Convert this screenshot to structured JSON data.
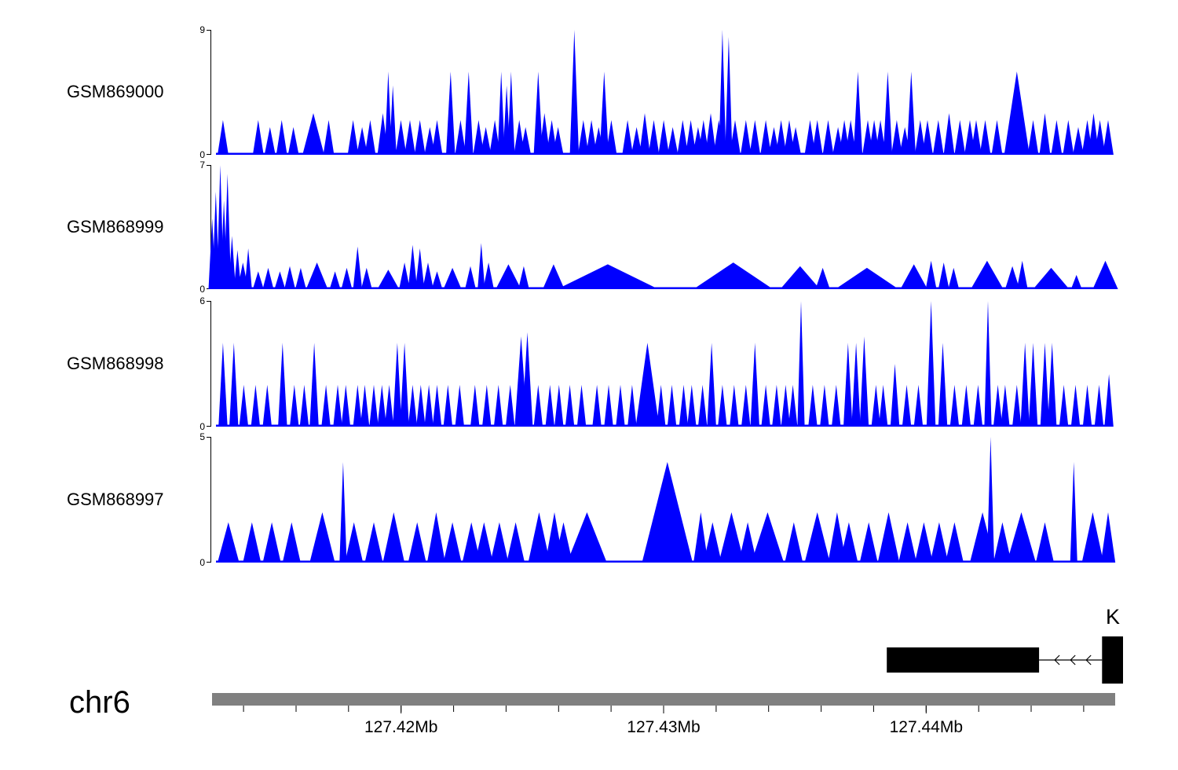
{
  "chart_data": {
    "type": "area",
    "chart_kind": "genome-coverage-tracks",
    "title": "",
    "chromosome": "chr6",
    "x_range_mb": [
      127.4128,
      127.4472
    ],
    "x_ticks": [
      {
        "value": 127.42,
        "label": "127.42Mb"
      },
      {
        "value": 127.43,
        "label": "127.43Mb"
      },
      {
        "value": 127.44,
        "label": "127.44Mb"
      }
    ],
    "x_minor_ticks": [
      127.414,
      127.416,
      127.418,
      127.42,
      127.422,
      127.424,
      127.426,
      127.428,
      127.43,
      127.432,
      127.434,
      127.436,
      127.438,
      127.44,
      127.442,
      127.444,
      127.446
    ],
    "grid": false,
    "legend": false,
    "peak_format": "[x_fraction_of_region, height, half_width_fraction_optional]",
    "colors": {
      "signal": "#0000ff",
      "ideogram": "#808080",
      "annotation": "#000000"
    },
    "series": [
      {
        "name": "GSM869000",
        "ylim": [
          0,
          9
        ],
        "default_halfwidth": 0.006,
        "peaks": [
          [
            0.013,
            2.5
          ],
          [
            0.052,
            2.5
          ],
          [
            0.065,
            2.0
          ],
          [
            0.078,
            2.5
          ],
          [
            0.091,
            2.0
          ],
          [
            0.113,
            3.0,
            0.012
          ],
          [
            0.13,
            2.5
          ],
          [
            0.157,
            2.5
          ],
          [
            0.167,
            2.0
          ],
          [
            0.176,
            2.5
          ],
          [
            0.19,
            3.0
          ],
          [
            0.196,
            6.0,
            0.004
          ],
          [
            0.201,
            5.0,
            0.004
          ],
          [
            0.21,
            2.5
          ],
          [
            0.22,
            2.5
          ],
          [
            0.231,
            2.5
          ],
          [
            0.242,
            2.0
          ],
          [
            0.25,
            2.5
          ],
          [
            0.265,
            6.0,
            0.005
          ],
          [
            0.276,
            2.5
          ],
          [
            0.285,
            6.0,
            0.005
          ],
          [
            0.296,
            2.5
          ],
          [
            0.304,
            2.0
          ],
          [
            0.314,
            2.5
          ],
          [
            0.321,
            6.0,
            0.004
          ],
          [
            0.327,
            5.0,
            0.004
          ],
          [
            0.332,
            6.0,
            0.004
          ],
          [
            0.341,
            2.5
          ],
          [
            0.348,
            2.0
          ],
          [
            0.362,
            6.0,
            0.005
          ],
          [
            0.369,
            3.0
          ],
          [
            0.377,
            2.5
          ],
          [
            0.384,
            2.0
          ],
          [
            0.402,
            9.0,
            0.005
          ],
          [
            0.412,
            2.5
          ],
          [
            0.421,
            2.5
          ],
          [
            0.429,
            2.0
          ],
          [
            0.435,
            6.0,
            0.005
          ],
          [
            0.443,
            2.5
          ],
          [
            0.461,
            2.5
          ],
          [
            0.471,
            2.0
          ],
          [
            0.48,
            3.0
          ],
          [
            0.49,
            2.5
          ],
          [
            0.501,
            2.5
          ],
          [
            0.511,
            2.0
          ],
          [
            0.522,
            2.5
          ],
          [
            0.531,
            2.5
          ],
          [
            0.539,
            2.0
          ],
          [
            0.545,
            2.5
          ],
          [
            0.553,
            3.0
          ],
          [
            0.562,
            2.5
          ],
          [
            0.566,
            9.0,
            0.004
          ],
          [
            0.573,
            8.5,
            0.004
          ],
          [
            0.58,
            2.5
          ],
          [
            0.592,
            2.5
          ],
          [
            0.602,
            2.5
          ],
          [
            0.614,
            2.5
          ],
          [
            0.623,
            2.0
          ],
          [
            0.631,
            2.5
          ],
          [
            0.64,
            2.5
          ],
          [
            0.647,
            2.0
          ],
          [
            0.663,
            2.5
          ],
          [
            0.671,
            2.5
          ],
          [
            0.683,
            2.5
          ],
          [
            0.694,
            2.0
          ],
          [
            0.701,
            2.5
          ],
          [
            0.708,
            2.5
          ],
          [
            0.716,
            6.0,
            0.005
          ],
          [
            0.727,
            2.5
          ],
          [
            0.734,
            2.5
          ],
          [
            0.741,
            2.5
          ],
          [
            0.749,
            6.0,
            0.005
          ],
          [
            0.759,
            2.5
          ],
          [
            0.768,
            2.0
          ],
          [
            0.775,
            6.0,
            0.005
          ],
          [
            0.785,
            2.5
          ],
          [
            0.793,
            2.5
          ],
          [
            0.805,
            2.5
          ],
          [
            0.817,
            3.0
          ],
          [
            0.829,
            2.5
          ],
          [
            0.84,
            2.5
          ],
          [
            0.847,
            2.5
          ],
          [
            0.857,
            2.5
          ],
          [
            0.87,
            2.5
          ],
          [
            0.892,
            6.0,
            0.014
          ],
          [
            0.91,
            2.5
          ],
          [
            0.923,
            3.0
          ],
          [
            0.936,
            2.5
          ],
          [
            0.949,
            2.5
          ],
          [
            0.96,
            2.0
          ],
          [
            0.97,
            2.5
          ],
          [
            0.977,
            3.0
          ],
          [
            0.984,
            2.5
          ],
          [
            0.993,
            2.5
          ]
        ]
      },
      {
        "name": "GSM868999",
        "ylim": [
          0,
          7
        ],
        "default_halfwidth": 0.006,
        "peaks": [
          [
            0.001,
            4.0,
            0.004
          ],
          [
            0.005,
            5.5,
            0.004
          ],
          [
            0.01,
            7.0,
            0.004
          ],
          [
            0.014,
            5.0,
            0.004
          ],
          [
            0.018,
            6.5,
            0.004
          ],
          [
            0.023,
            3.0,
            0.004
          ],
          [
            0.029,
            2.2,
            0.004
          ],
          [
            0.035,
            1.5
          ],
          [
            0.041,
            2.3,
            0.004
          ],
          [
            0.052,
            1.0
          ],
          [
            0.063,
            1.2
          ],
          [
            0.076,
            1.0
          ],
          [
            0.087,
            1.3
          ],
          [
            0.099,
            1.2
          ],
          [
            0.117,
            1.5,
            0.012
          ],
          [
            0.137,
            1.0
          ],
          [
            0.15,
            1.2
          ],
          [
            0.162,
            2.4,
            0.005
          ],
          [
            0.172,
            1.2
          ],
          [
            0.196,
            1.1,
            0.012
          ],
          [
            0.214,
            1.5
          ],
          [
            0.223,
            2.5,
            0.005
          ],
          [
            0.231,
            2.3,
            0.005
          ],
          [
            0.24,
            1.5
          ],
          [
            0.25,
            1.0
          ],
          [
            0.267,
            1.2,
            0.01
          ],
          [
            0.287,
            1.3
          ],
          [
            0.299,
            2.6,
            0.004
          ],
          [
            0.307,
            1.5
          ],
          [
            0.329,
            1.4,
            0.014
          ],
          [
            0.346,
            1.3
          ],
          [
            0.379,
            1.4,
            0.012
          ],
          [
            0.439,
            1.4,
            0.056
          ],
          [
            0.578,
            1.5,
            0.044
          ],
          [
            0.652,
            1.3,
            0.022
          ],
          [
            0.677,
            1.2,
            0.008
          ],
          [
            0.726,
            1.2,
            0.035
          ],
          [
            0.778,
            1.4,
            0.015
          ],
          [
            0.797,
            1.6
          ],
          [
            0.811,
            1.5
          ],
          [
            0.822,
            1.2
          ],
          [
            0.859,
            1.6,
            0.018
          ],
          [
            0.887,
            1.3,
            0.008
          ],
          [
            0.898,
            1.6
          ],
          [
            0.93,
            1.2,
            0.02
          ],
          [
            0.958,
            0.8
          ],
          [
            0.99,
            1.6,
            0.014
          ]
        ]
      },
      {
        "name": "GSM868998",
        "ylim": [
          0,
          6
        ],
        "default_halfwidth": 0.005,
        "peaks": [
          [
            0.013,
            4.0
          ],
          [
            0.025,
            4.0
          ],
          [
            0.036,
            2.0
          ],
          [
            0.049,
            2.0
          ],
          [
            0.062,
            2.0
          ],
          [
            0.079,
            4.0
          ],
          [
            0.092,
            2.0
          ],
          [
            0.103,
            2.0
          ],
          [
            0.114,
            4.0
          ],
          [
            0.127,
            2.0
          ],
          [
            0.14,
            2.0
          ],
          [
            0.149,
            2.0
          ],
          [
            0.162,
            2.0
          ],
          [
            0.17,
            2.0
          ],
          [
            0.18,
            2.0
          ],
          [
            0.189,
            2.0
          ],
          [
            0.197,
            2.0
          ],
          [
            0.206,
            4.0
          ],
          [
            0.214,
            4.0
          ],
          [
            0.223,
            2.0
          ],
          [
            0.232,
            2.0
          ],
          [
            0.241,
            2.0
          ],
          [
            0.25,
            2.0
          ],
          [
            0.262,
            2.0
          ],
          [
            0.275,
            2.0
          ],
          [
            0.292,
            2.0
          ],
          [
            0.305,
            2.0
          ],
          [
            0.318,
            2.0
          ],
          [
            0.331,
            2.0
          ],
          [
            0.343,
            4.3,
            0.007
          ],
          [
            0.35,
            4.5,
            0.006
          ],
          [
            0.362,
            2.0
          ],
          [
            0.375,
            2.0
          ],
          [
            0.385,
            2.0
          ],
          [
            0.397,
            2.0
          ],
          [
            0.41,
            2.0
          ],
          [
            0.427,
            2.0
          ],
          [
            0.44,
            2.0
          ],
          [
            0.453,
            2.0
          ],
          [
            0.466,
            2.0
          ],
          [
            0.483,
            4.0,
            0.013
          ],
          [
            0.498,
            2.0
          ],
          [
            0.51,
            2.0
          ],
          [
            0.523,
            2.0
          ],
          [
            0.532,
            2.0
          ],
          [
            0.544,
            2.0
          ],
          [
            0.554,
            4.0
          ],
          [
            0.566,
            2.0
          ],
          [
            0.579,
            2.0
          ],
          [
            0.592,
            2.0
          ],
          [
            0.602,
            4.0
          ],
          [
            0.614,
            2.0
          ],
          [
            0.626,
            2.0
          ],
          [
            0.636,
            2.0
          ],
          [
            0.644,
            2.0
          ],
          [
            0.653,
            6.0,
            0.004
          ],
          [
            0.666,
            2.0
          ],
          [
            0.679,
            2.0
          ],
          [
            0.692,
            2.0
          ],
          [
            0.705,
            4.0
          ],
          [
            0.714,
            4.0
          ],
          [
            0.723,
            4.3
          ],
          [
            0.736,
            2.0
          ],
          [
            0.744,
            2.0
          ],
          [
            0.757,
            3.0
          ],
          [
            0.77,
            2.0
          ],
          [
            0.783,
            2.0
          ],
          [
            0.797,
            6.0,
            0.005
          ],
          [
            0.81,
            4.0
          ],
          [
            0.823,
            2.0
          ],
          [
            0.836,
            2.0
          ],
          [
            0.849,
            2.0
          ],
          [
            0.86,
            6.0,
            0.004
          ],
          [
            0.871,
            2.0
          ],
          [
            0.879,
            2.0
          ],
          [
            0.892,
            2.0
          ],
          [
            0.901,
            4.0
          ],
          [
            0.91,
            4.0
          ],
          [
            0.923,
            4.0
          ],
          [
            0.931,
            4.0
          ],
          [
            0.944,
            2.0
          ],
          [
            0.957,
            2.0
          ],
          [
            0.97,
            2.0
          ],
          [
            0.983,
            2.0
          ],
          [
            0.994,
            2.5
          ]
        ]
      },
      {
        "name": "GSM868997",
        "ylim": [
          0,
          5
        ],
        "default_halfwidth": 0.01,
        "peaks": [
          [
            0.019,
            1.6,
            0.012
          ],
          [
            0.045,
            1.6
          ],
          [
            0.067,
            1.6
          ],
          [
            0.089,
            1.6
          ],
          [
            0.123,
            2.0,
            0.014
          ],
          [
            0.146,
            4.0,
            0.004
          ],
          [
            0.158,
            1.6
          ],
          [
            0.18,
            1.6
          ],
          [
            0.202,
            2.0,
            0.012
          ],
          [
            0.228,
            1.6
          ],
          [
            0.249,
            2.0
          ],
          [
            0.267,
            1.6
          ],
          [
            0.288,
            1.6
          ],
          [
            0.302,
            1.6
          ],
          [
            0.319,
            1.6
          ],
          [
            0.337,
            1.6
          ],
          [
            0.363,
            2.0,
            0.012
          ],
          [
            0.38,
            2.0
          ],
          [
            0.39,
            1.6
          ],
          [
            0.416,
            2.0,
            0.022
          ],
          [
            0.505,
            4.0,
            0.028
          ],
          [
            0.542,
            2.0,
            0.008
          ],
          [
            0.555,
            1.6
          ],
          [
            0.576,
            2.0,
            0.014
          ],
          [
            0.594,
            1.6
          ],
          [
            0.616,
            2.0,
            0.018
          ],
          [
            0.645,
            1.6
          ],
          [
            0.671,
            2.0,
            0.014
          ],
          [
            0.693,
            2.0
          ],
          [
            0.706,
            1.6
          ],
          [
            0.728,
            1.6
          ],
          [
            0.75,
            2.0,
            0.012
          ],
          [
            0.771,
            1.6
          ],
          [
            0.789,
            1.6
          ],
          [
            0.806,
            1.6
          ],
          [
            0.823,
            1.6
          ],
          [
            0.854,
            2.0,
            0.014
          ],
          [
            0.863,
            5.0,
            0.004
          ],
          [
            0.876,
            1.6
          ],
          [
            0.897,
            2.0,
            0.016
          ],
          [
            0.923,
            1.6
          ],
          [
            0.955,
            4.0,
            0.004
          ],
          [
            0.976,
            2.0,
            0.012
          ],
          [
            0.993,
            2.0,
            0.008
          ]
        ]
      }
    ],
    "gene_track": {
      "label": "K",
      "strand": "-",
      "exons_mb": [
        [
          127.4385,
          127.4443
        ],
        [
          127.4467,
          127.4475
        ]
      ],
      "intron_mb": [
        127.4443,
        127.4467
      ],
      "arrow_count": 3
    }
  }
}
